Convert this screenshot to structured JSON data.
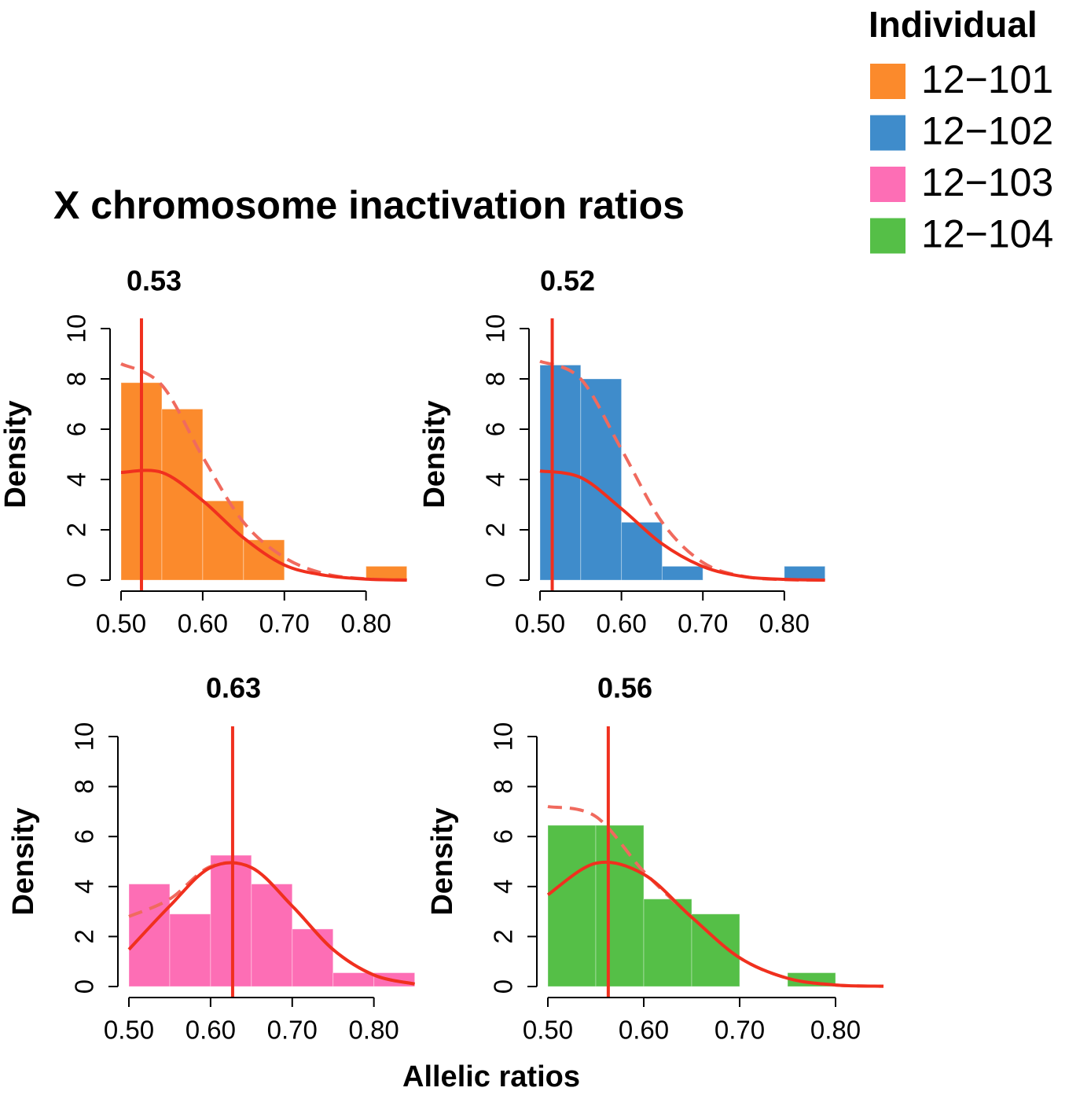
{
  "title": "X chromosome inactivation ratios",
  "xlabel": "Allelic ratios",
  "legend": {
    "title": "Individual",
    "position": "top-right",
    "items": [
      {
        "name": "12−101",
        "color": "#fb8a2c"
      },
      {
        "name": "12−102",
        "color": "#3f8ccb"
      },
      {
        "name": "12−103",
        "color": "#fd6eb5"
      },
      {
        "name": "12−104",
        "color": "#55bf47"
      }
    ]
  },
  "chart_data": [
    {
      "type": "histogram",
      "title": "0.53",
      "ylabel": "Density",
      "color": "#fb8a2c",
      "bins": [
        0.5,
        0.55,
        0.6,
        0.65,
        0.7,
        0.75,
        0.8,
        0.85
      ],
      "values": [
        7.85,
        6.8,
        3.15,
        1.6,
        0,
        0,
        0.55
      ],
      "mean_line": 0.525,
      "curves": [
        {
          "style": "dashed",
          "color": "#f06a5e",
          "x": [
            0.5,
            0.55,
            0.6,
            0.65,
            0.7,
            0.75,
            0.8,
            0.85
          ],
          "values": [
            8.6,
            7.75,
            4.9,
            2.3,
            0.9,
            0.25,
            0.05,
            0
          ]
        },
        {
          "style": "solid",
          "color": "#f0301e",
          "x": [
            0.5,
            0.55,
            0.6,
            0.65,
            0.7,
            0.75,
            0.8,
            0.85
          ],
          "values": [
            4.28,
            4.28,
            3.16,
            1.68,
            0.6,
            0.19,
            0.04,
            0.003
          ]
        }
      ],
      "xlim": [
        0.5,
        0.86
      ],
      "ylim": [
        0,
        10
      ],
      "xticks": [
        {
          "value": 0.5,
          "label": "0.50"
        },
        {
          "value": 0.6,
          "label": "0.60"
        },
        {
          "value": 0.7,
          "label": "0.70"
        },
        {
          "value": 0.8,
          "label": "0.80"
        }
      ],
      "yticks": [
        0,
        2,
        4,
        6,
        8,
        10
      ]
    },
    {
      "type": "histogram",
      "title": "0.52",
      "ylabel": "Density",
      "color": "#3f8ccb",
      "bins": [
        0.5,
        0.55,
        0.6,
        0.65,
        0.7,
        0.75,
        0.8,
        0.85
      ],
      "values": [
        8.55,
        8.0,
        2.3,
        0.55,
        0,
        0,
        0.55
      ],
      "mean_line": 0.515,
      "curves": [
        {
          "style": "dashed",
          "color": "#f06a5e",
          "x": [
            0.5,
            0.55,
            0.6,
            0.65,
            0.7,
            0.75,
            0.8,
            0.85
          ],
          "values": [
            8.7,
            8.0,
            5.2,
            2.3,
            0.7,
            0.15,
            0.02,
            0
          ]
        },
        {
          "style": "solid",
          "color": "#f0301e",
          "x": [
            0.5,
            0.55,
            0.6,
            0.65,
            0.7,
            0.75,
            0.8,
            0.85
          ],
          "values": [
            4.34,
            4.08,
            2.84,
            1.44,
            0.54,
            0.14,
            0.03,
            0
          ]
        }
      ],
      "xlim": [
        0.5,
        0.86
      ],
      "ylim": [
        0,
        10
      ],
      "xticks": [
        {
          "value": 0.5,
          "label": "0.50"
        },
        {
          "value": 0.6,
          "label": "0.60"
        },
        {
          "value": 0.7,
          "label": "0.70"
        },
        {
          "value": 0.8,
          "label": "0.80"
        }
      ],
      "yticks": [
        0,
        2,
        4,
        6,
        8,
        10
      ]
    },
    {
      "type": "histogram",
      "title": "0.63",
      "ylabel": "Density",
      "color": "#fd6eb5",
      "bins": [
        0.5,
        0.55,
        0.6,
        0.65,
        0.7,
        0.75,
        0.8,
        0.85
      ],
      "values": [
        4.1,
        2.9,
        5.25,
        4.1,
        2.3,
        0.55,
        0.55
      ],
      "mean_line": 0.627,
      "curves": [
        {
          "style": "dashed",
          "color": "#f06a5e",
          "x": [
            0.5,
            0.55,
            0.6,
            0.65,
            0.7,
            0.75,
            0.8,
            0.85
          ],
          "values": [
            2.8,
            3.5,
            4.8,
            4.76,
            3.22,
            1.48,
            0.46,
            0.1
          ]
        },
        {
          "style": "solid",
          "color": "#f0301e",
          "x": [
            0.5,
            0.55,
            0.6,
            0.65,
            0.7,
            0.75,
            0.8,
            0.85
          ],
          "values": [
            1.48,
            3.22,
            4.76,
            4.76,
            3.22,
            1.48,
            0.46,
            0.1
          ]
        }
      ],
      "xlim": [
        0.5,
        0.86
      ],
      "ylim": [
        0,
        10
      ],
      "xticks": [
        {
          "value": 0.5,
          "label": "0.50"
        },
        {
          "value": 0.6,
          "label": "0.60"
        },
        {
          "value": 0.7,
          "label": "0.70"
        },
        {
          "value": 0.8,
          "label": "0.80"
        }
      ],
      "yticks": [
        0,
        2,
        4,
        6,
        8,
        10
      ]
    },
    {
      "type": "histogram",
      "title": "0.56",
      "ylabel": "Density",
      "color": "#55bf47",
      "bins": [
        0.5,
        0.55,
        0.6,
        0.65,
        0.7,
        0.75,
        0.8
      ],
      "values": [
        6.45,
        6.45,
        3.5,
        2.9,
        0,
        0.55
      ],
      "mean_line": 0.563,
      "curves": [
        {
          "style": "dashed",
          "color": "#f06a5e",
          "x": [
            0.5,
            0.55,
            0.6,
            0.65,
            0.7,
            0.75,
            0.8,
            0.85
          ],
          "values": [
            7.2,
            6.8,
            4.6,
            2.77,
            1.15,
            0.33,
            0.06,
            0.01
          ]
        },
        {
          "style": "solid",
          "color": "#f0301e",
          "x": [
            0.5,
            0.55,
            0.6,
            0.65,
            0.7,
            0.75,
            0.8,
            0.85
          ],
          "values": [
            3.67,
            4.93,
            4.49,
            2.77,
            1.15,
            0.33,
            0.06,
            0.01
          ]
        }
      ],
      "xlim": [
        0.5,
        0.85
      ],
      "ylim": [
        0,
        10
      ],
      "xticks": [
        {
          "value": 0.5,
          "label": "0.50"
        },
        {
          "value": 0.6,
          "label": "0.60"
        },
        {
          "value": 0.7,
          "label": "0.70"
        },
        {
          "value": 0.8,
          "label": "0.80"
        }
      ],
      "yticks": [
        0,
        2,
        4,
        6,
        8,
        10
      ]
    }
  ]
}
